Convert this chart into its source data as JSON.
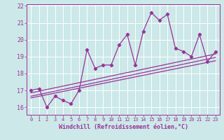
{
  "title": "",
  "xlabel": "Windchill (Refroidissement éolien,°C)",
  "background_color": "#cce8e8",
  "line_color": "#993399",
  "grid_color": "#aacccc",
  "xlim": [
    -0.5,
    23.5
  ],
  "ylim": [
    15.55,
    22.1
  ],
  "xticks": [
    0,
    1,
    2,
    3,
    4,
    5,
    6,
    7,
    8,
    9,
    10,
    11,
    12,
    13,
    14,
    15,
    16,
    17,
    18,
    19,
    20,
    21,
    22,
    23
  ],
  "yticks": [
    16,
    17,
    18,
    19,
    20,
    21,
    22
  ],
  "scatter_x": [
    0,
    1,
    2,
    3,
    4,
    5,
    6,
    7,
    8,
    9,
    10,
    11,
    12,
    13,
    14,
    15,
    16,
    17,
    18,
    19,
    20,
    21,
    22,
    23
  ],
  "scatter_y": [
    17.0,
    17.1,
    16.0,
    16.65,
    16.4,
    16.2,
    17.0,
    19.4,
    18.3,
    18.5,
    18.5,
    19.7,
    20.3,
    18.5,
    20.5,
    21.6,
    21.15,
    21.5,
    19.5,
    19.3,
    19.0,
    20.3,
    18.7,
    19.3
  ],
  "reg_line1": {
    "x": [
      0,
      23
    ],
    "y": [
      16.85,
      19.15
    ]
  },
  "reg_line2": {
    "x": [
      0,
      23
    ],
    "y": [
      16.65,
      18.95
    ]
  },
  "reg_line3": {
    "x": [
      0,
      23
    ],
    "y": [
      16.55,
      18.75
    ]
  }
}
